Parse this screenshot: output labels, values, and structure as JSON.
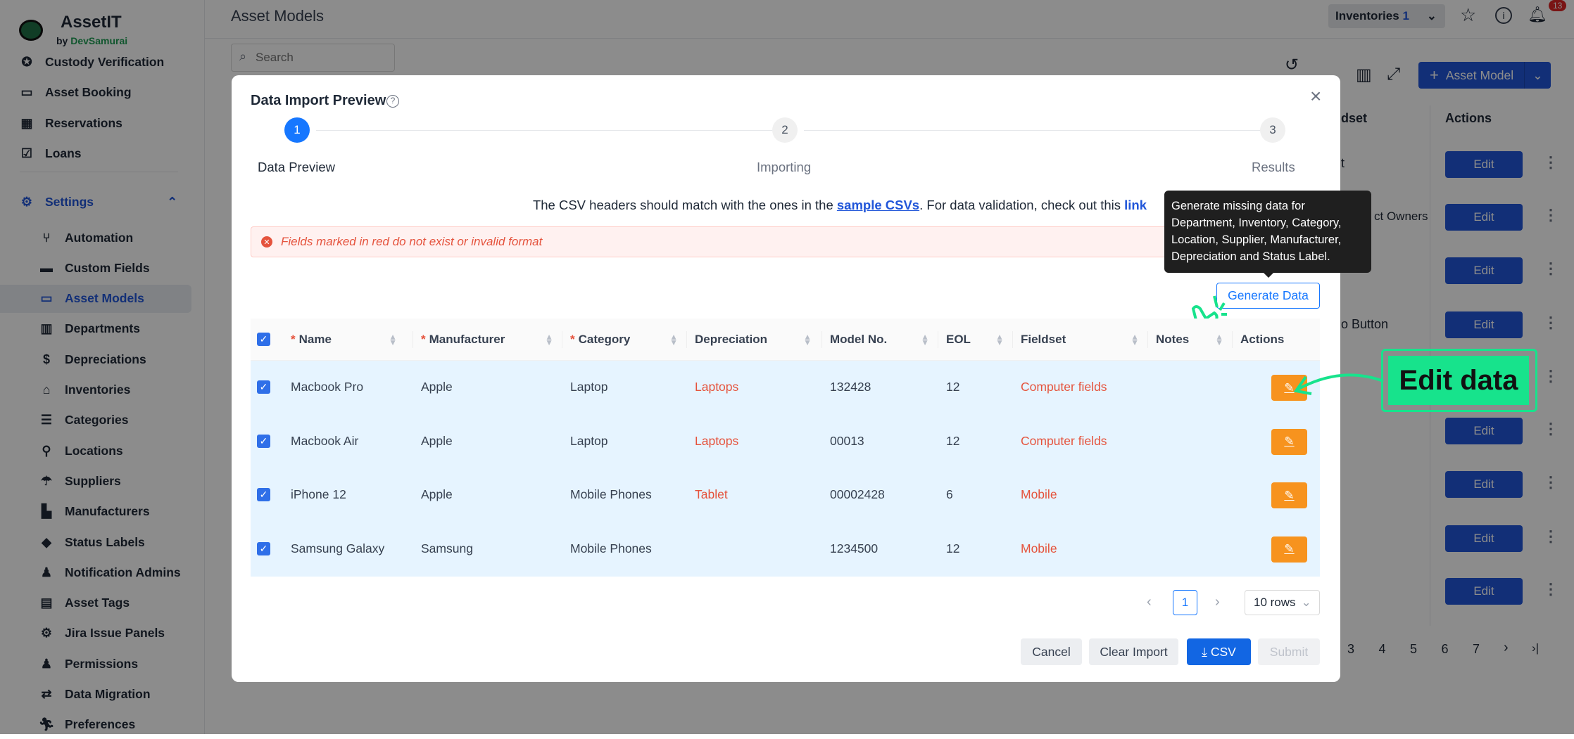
{
  "app": {
    "name": "AssetIT",
    "by": "by",
    "brand": "DevSamurai"
  },
  "sidebar": {
    "top_items": [
      {
        "label": "Custody Verification",
        "icon": "badge-check-icon"
      },
      {
        "label": "Asset Booking",
        "icon": "ticket-icon"
      },
      {
        "label": "Reservations",
        "icon": "calendar-icon"
      },
      {
        "label": "Loans",
        "icon": "calendar-check-icon"
      }
    ],
    "settings": {
      "label": "Settings",
      "icon": "gear-icon",
      "expanded": true
    },
    "sub_items": [
      {
        "label": "Automation",
        "icon": "flow-icon"
      },
      {
        "label": "Custom Fields",
        "icon": "card-icon"
      },
      {
        "label": "Asset Models",
        "icon": "monitor-icon",
        "active": true
      },
      {
        "label": "Departments",
        "icon": "building-icon"
      },
      {
        "label": "Depreciations",
        "icon": "money-hand-icon"
      },
      {
        "label": "Inventories",
        "icon": "warehouse-icon"
      },
      {
        "label": "Categories",
        "icon": "list-icon"
      },
      {
        "label": "Locations",
        "icon": "map-icon"
      },
      {
        "label": "Suppliers",
        "icon": "parachute-icon"
      },
      {
        "label": "Manufacturers",
        "icon": "factory-icon"
      },
      {
        "label": "Status Labels",
        "icon": "tag-icon"
      },
      {
        "label": "Notification Admins",
        "icon": "user-bell-icon"
      },
      {
        "label": "Asset Tags",
        "icon": "clipboard-icon"
      },
      {
        "label": "Jira Issue Panels",
        "icon": "gears-icon"
      },
      {
        "label": "Permissions",
        "icon": "user-lock-icon"
      },
      {
        "label": "Data Migration",
        "icon": "arrows-swap-icon"
      },
      {
        "label": "Preferences",
        "icon": "running-icon"
      }
    ]
  },
  "header": {
    "title": "Asset Models",
    "inventories_label": "Inventories",
    "inventories_count": "1",
    "notification_count": "13"
  },
  "toolbar": {
    "add_label": "Asset Model",
    "search_placeholder": "Search"
  },
  "background_table": {
    "fieldset_header_fragment": "dset",
    "actions_header": "Actions",
    "fragments": [
      "t",
      "ct Owners",
      "o Button"
    ],
    "edit_label": "Edit",
    "pages": [
      "3",
      "4",
      "5",
      "6",
      "7"
    ]
  },
  "modal": {
    "title": "Data Import Preview",
    "steps": [
      {
        "num": "1",
        "label": "Data Preview",
        "active": true
      },
      {
        "num": "2",
        "label": "Importing"
      },
      {
        "num": "3",
        "label": "Results"
      }
    ],
    "info_pre": "The CSV headers should match with the ones in the ",
    "info_link1": "sample CSVs",
    "info_mid": ". For data validation, check out this ",
    "info_link2": "link",
    "error": "Fields marked in red do not exist or invalid format",
    "generate_label": "Generate Data",
    "tooltip": "Generate missing data for Department, Inventory, Category, Location, Supplier, Manufacturer, Depreciation and Status Label.",
    "columns": [
      {
        "label": "Name",
        "required": true
      },
      {
        "label": "Manufacturer",
        "required": true
      },
      {
        "label": "Category",
        "required": true
      },
      {
        "label": "Depreciation"
      },
      {
        "label": "Model No."
      },
      {
        "label": "EOL"
      },
      {
        "label": "Fieldset"
      },
      {
        "label": "Notes"
      },
      {
        "label": "Actions"
      }
    ],
    "rows": [
      {
        "name": "Macbook Pro",
        "manufacturer": "Apple",
        "category": "Laptop",
        "depreciation": "Laptops",
        "model": "132428",
        "eol": "12",
        "fieldset": "Computer fields",
        "notes": ""
      },
      {
        "name": "Macbook Air",
        "manufacturer": "Apple",
        "category": "Laptop",
        "depreciation": "Laptops",
        "model": "00013",
        "eol": "12",
        "fieldset": "Computer fields",
        "notes": ""
      },
      {
        "name": "iPhone 12",
        "manufacturer": "Apple",
        "category": "Mobile Phones",
        "depreciation": "Tablet",
        "model": "00002428",
        "eol": "6",
        "fieldset": "Mobile",
        "notes": ""
      },
      {
        "name": "Samsung Galaxy",
        "manufacturer": "Samsung",
        "category": "Mobile Phones",
        "depreciation": "",
        "model": "1234500",
        "eol": "12",
        "fieldset": "Mobile",
        "notes": ""
      }
    ],
    "pagination": {
      "current": "1",
      "rows_label": "10 rows"
    },
    "buttons": {
      "cancel": "Cancel",
      "clear": "Clear Import",
      "csv": "CSV",
      "submit": "Submit"
    }
  },
  "annotation": {
    "label": "Edit data"
  },
  "colors": {
    "primary": "#2156d9",
    "error": "#e5533d",
    "edit": "#f7931e",
    "annotation": "#17e38c"
  }
}
